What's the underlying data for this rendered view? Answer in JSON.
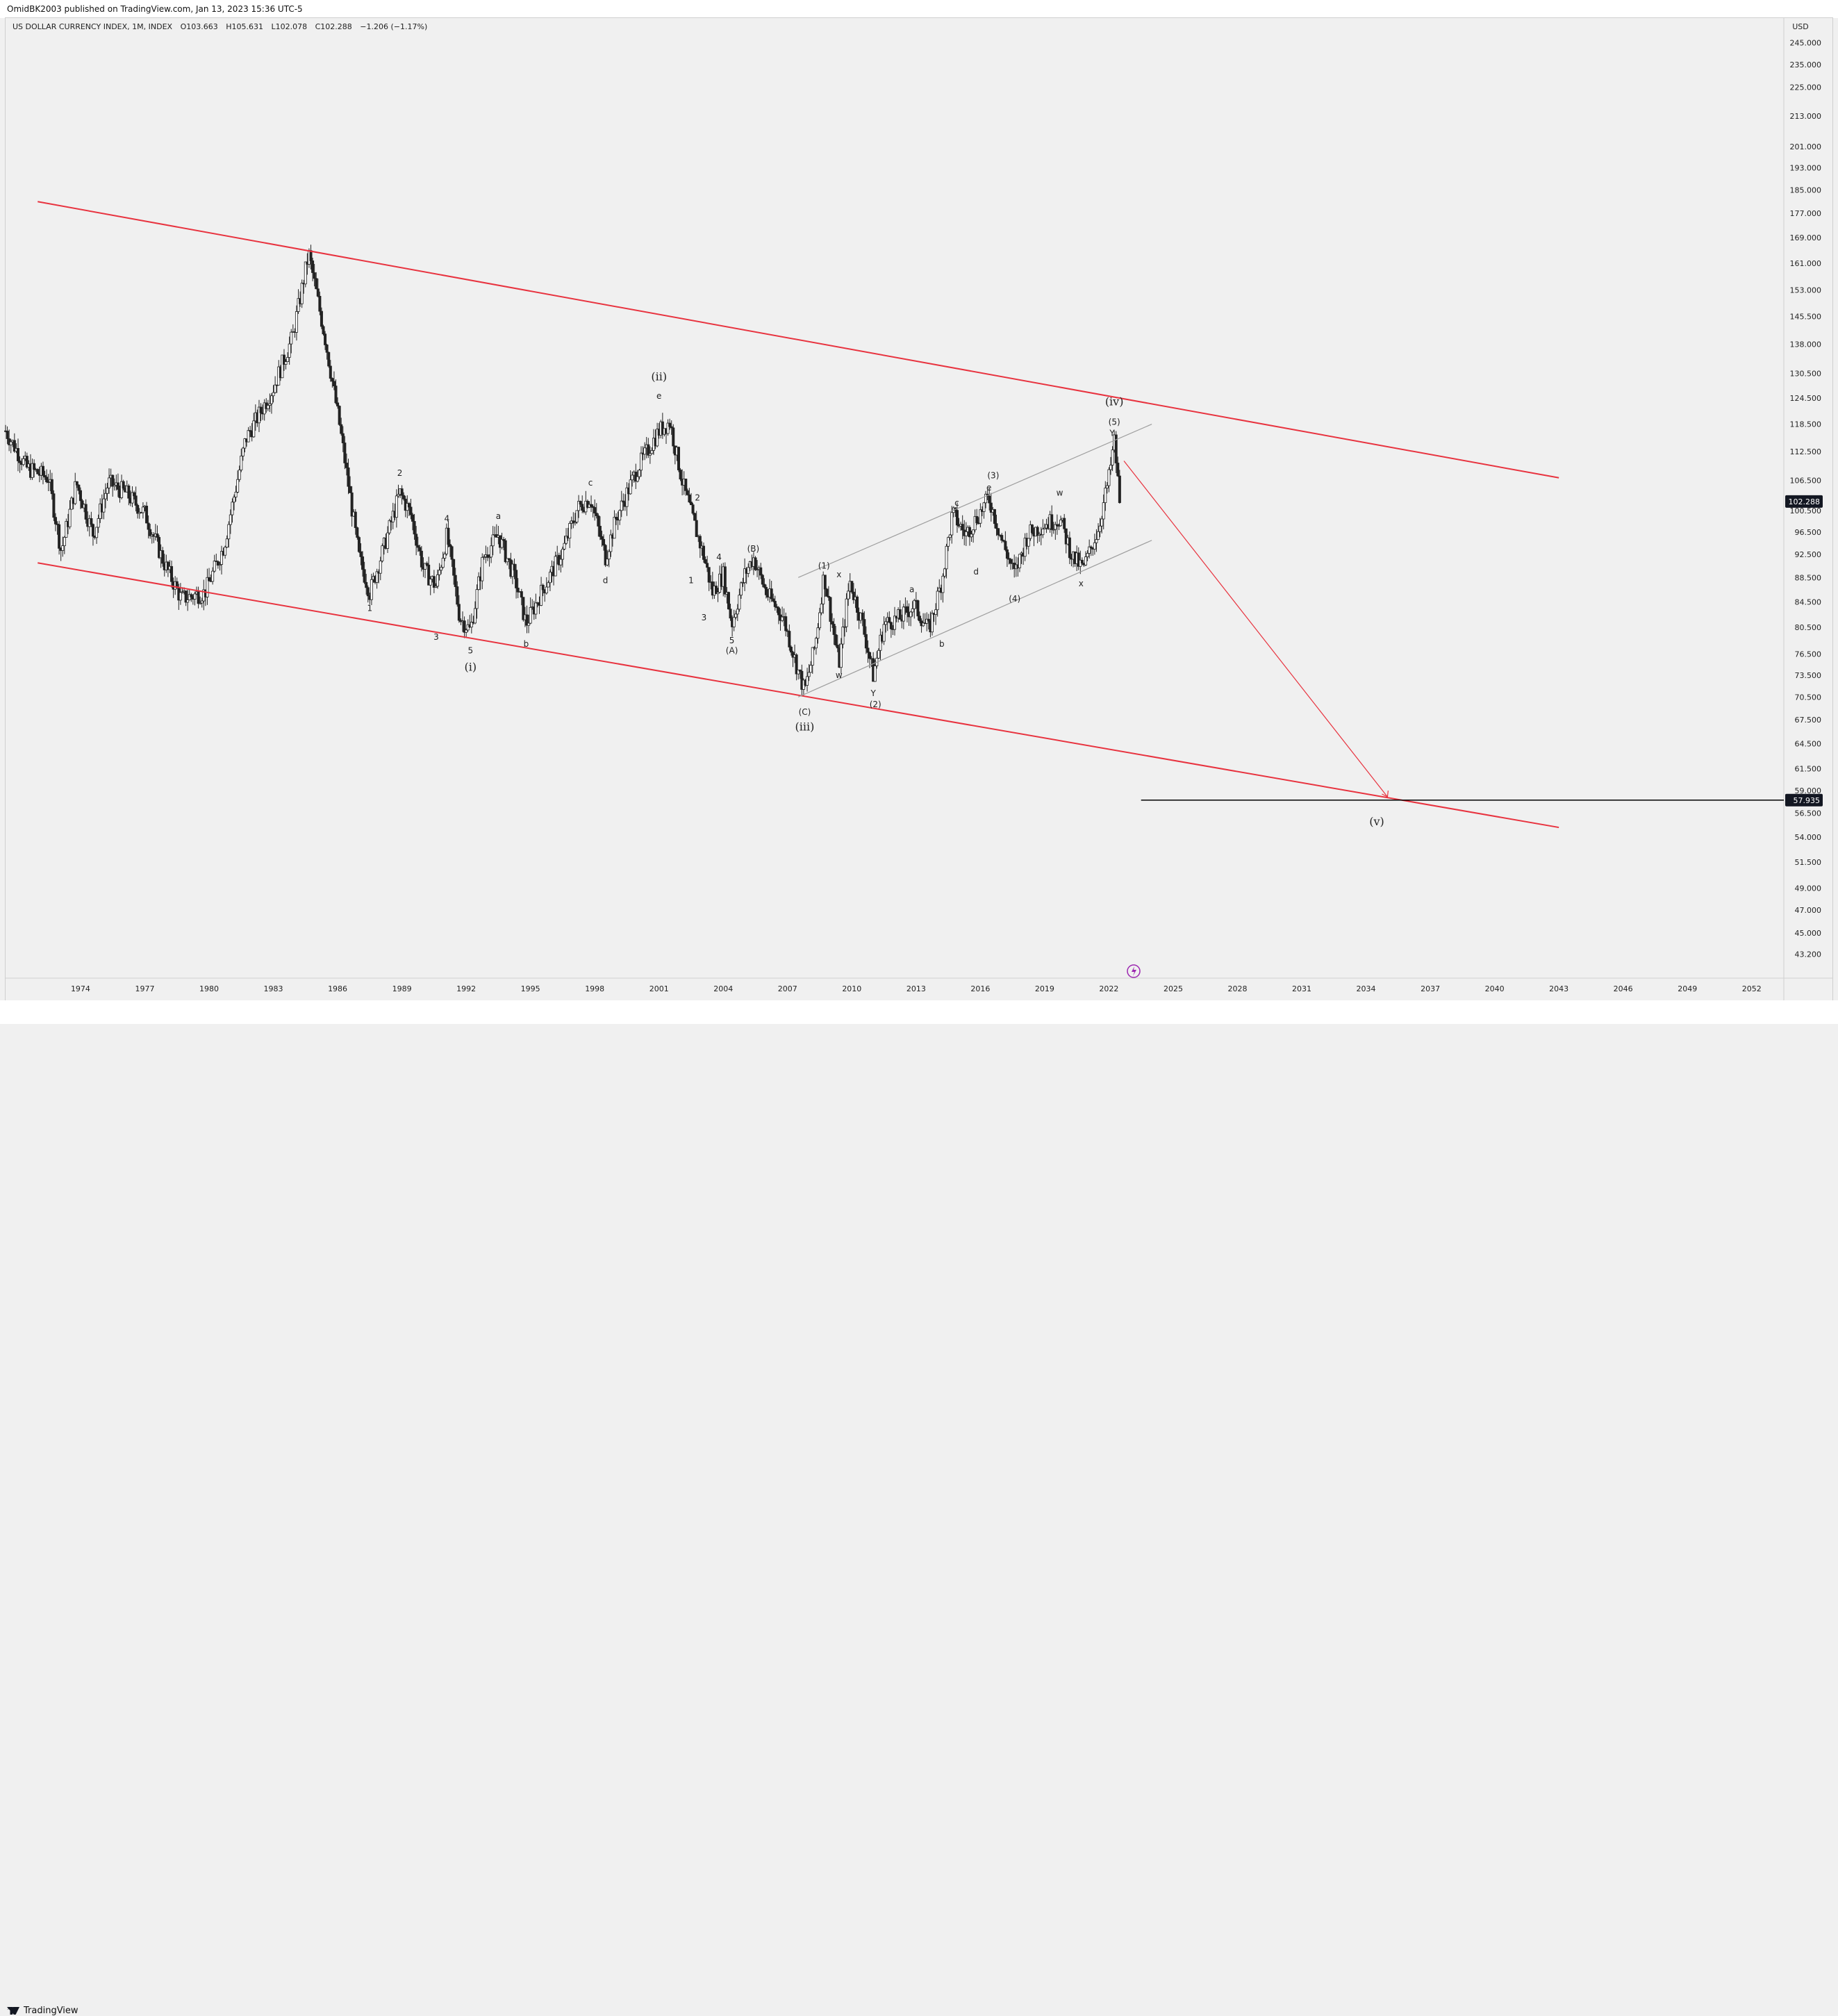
{
  "header": {
    "published_by": "OmidBK2003 published on TradingView.com, Jan 13, 2023 15:36 UTC-5",
    "symbol": "US DOLLAR CURRENCY INDEX, 1M, INDEX",
    "open": "O103.663",
    "high": "H105.631",
    "low": "L102.078",
    "close": "C102.288",
    "change": "−1.206 (−1.17%)"
  },
  "footer": {
    "brand": "TradingView"
  },
  "colors": {
    "channel": "#e8333f",
    "arrow": "#e8333f",
    "wave_channel": "#9e9e9e",
    "candle": "#222222",
    "target": "#000000",
    "price_badge": "#131722",
    "idea_icon": "#9c27b0"
  },
  "chart_data": {
    "type": "candlestick",
    "title": "US DOLLAR CURRENCY INDEX, 1M, INDEX",
    "currency": "USD",
    "y_scale": "log",
    "ylim": [
      42.0,
      252.0
    ],
    "xlim": [
      1971.0,
      2054.0
    ],
    "y_ticks": [
      "245.000",
      "235.000",
      "225.000",
      "213.000",
      "201.000",
      "193.000",
      "185.000",
      "177.000",
      "169.000",
      "161.000",
      "153.000",
      "145.500",
      "138.000",
      "130.500",
      "124.500",
      "118.500",
      "112.500",
      "106.500",
      "100.500",
      "96.500",
      "92.500",
      "88.500",
      "84.500",
      "80.500",
      "76.500",
      "73.500",
      "70.500",
      "67.500",
      "64.500",
      "61.500",
      "59.000",
      "56.500",
      "54.000",
      "51.500",
      "49.000",
      "47.000",
      "45.000",
      "43.200"
    ],
    "x_ticks": [
      "1974",
      "1977",
      "1980",
      "1983",
      "1986",
      "1989",
      "1992",
      "1995",
      "1998",
      "2001",
      "2004",
      "2007",
      "2010",
      "2013",
      "2016",
      "2019",
      "2022",
      "2025",
      "2028",
      "2031",
      "2034",
      "2037",
      "2040",
      "2043",
      "2046",
      "2049",
      "2052"
    ],
    "last_price": "102.288",
    "target_price": "57.935",
    "price_path": [
      [
        1971.0,
        117
      ],
      [
        1972.0,
        109
      ],
      [
        1973.0,
        107
      ],
      [
        1973.6,
        93
      ],
      [
        1974.3,
        106
      ],
      [
        1975.1,
        96
      ],
      [
        1975.8,
        106
      ],
      [
        1976.6,
        104
      ],
      [
        1977.5,
        100
      ],
      [
        1978.4,
        91
      ],
      [
        1979.2,
        85
      ],
      [
        1980.3,
        86
      ],
      [
        1981.2,
        94
      ],
      [
        1982.2,
        115
      ],
      [
        1983.5,
        127
      ],
      [
        1984.4,
        140
      ],
      [
        1985.15,
        164
      ],
      [
        1985.9,
        140
      ],
      [
        1986.6,
        118
      ],
      [
        1987.5,
        92
      ],
      [
        1988.0,
        86
      ],
      [
        1988.6,
        93
      ],
      [
        1989.4,
        104
      ],
      [
        1989.9,
        100
      ],
      [
        1990.5,
        90
      ],
      [
        1991.1,
        87
      ],
      [
        1991.6,
        96
      ],
      [
        1992.2,
        82
      ],
      [
        1992.7,
        80
      ],
      [
        1993.3,
        92
      ],
      [
        1994.0,
        96
      ],
      [
        1994.8,
        88
      ],
      [
        1995.3,
        81
      ],
      [
        1996.0,
        86
      ],
      [
        1997.0,
        93
      ],
      [
        1997.7,
        101
      ],
      [
        1998.3,
        103
      ],
      [
        1999.0,
        92
      ],
      [
        1999.5,
        99
      ],
      [
        2000.5,
        109
      ],
      [
        2001.5,
        117
      ],
      [
        2002.0,
        119
      ],
      [
        2002.6,
        106
      ],
      [
        2003.0,
        100
      ],
      [
        2003.6,
        92
      ],
      [
        2004.0,
        86
      ],
      [
        2004.5,
        89
      ],
      [
        2004.9,
        81
      ],
      [
        2005.5,
        89
      ],
      [
        2005.9,
        92
      ],
      [
        2006.5,
        86
      ],
      [
        2007.3,
        82
      ],
      [
        2008.0,
        74
      ],
      [
        2008.3,
        71.3
      ],
      [
        2008.8,
        78
      ],
      [
        2009.2,
        89
      ],
      [
        2009.9,
        75
      ],
      [
        2010.4,
        88
      ],
      [
        2011.0,
        81
      ],
      [
        2011.5,
        73.5
      ],
      [
        2012.0,
        81
      ],
      [
        2012.8,
        82
      ],
      [
        2013.4,
        84
      ],
      [
        2014.1,
        80
      ],
      [
        2014.7,
        88
      ],
      [
        2015.2,
        100
      ],
      [
        2015.8,
        96
      ],
      [
        2016.3,
        99
      ],
      [
        2016.9,
        103
      ],
      [
        2017.5,
        95
      ],
      [
        2018.1,
        89
      ],
      [
        2018.7,
        96
      ],
      [
        2019.5,
        98
      ],
      [
        2020.2,
        99
      ],
      [
        2020.8,
        92
      ],
      [
        2021.3,
        90
      ],
      [
        2022.0,
        97
      ],
      [
        2022.5,
        107
      ],
      [
        2022.75,
        114.8
      ],
      [
        2023.0,
        102.288
      ]
    ],
    "series": [
      {
        "name": "Upper channel",
        "x": [
          1972.5,
          2043.5
        ],
        "y": [
          181,
          107
        ]
      },
      {
        "name": "Lower channel",
        "x": [
          1972.5,
          2043.5
        ],
        "y": [
          91,
          55
        ]
      },
      {
        "name": "Wave channel top",
        "x": [
          2008.0,
          2024.5
        ],
        "y": [
          88.5,
          118.5
        ]
      },
      {
        "name": "Wave channel bottom",
        "x": [
          2008.0,
          2024.5
        ],
        "y": [
          70.5,
          95
        ]
      },
      {
        "name": "Projection",
        "x": [
          2023.2,
          2035.5
        ],
        "y": [
          110.5,
          58.3
        ]
      },
      {
        "name": "Target",
        "x": [
          2024.0,
          2054.0
        ],
        "y": [
          57.935,
          57.935
        ]
      }
    ],
    "annotations": [
      {
        "text": "1",
        "x": 1988.0,
        "y": 83.5
      },
      {
        "text": "2",
        "x": 1989.4,
        "y": 108
      },
      {
        "text": "3",
        "x": 1991.1,
        "y": 79
      },
      {
        "text": "4",
        "x": 1991.6,
        "y": 99
      },
      {
        "text": "5",
        "x": 1992.7,
        "y": 77
      },
      {
        "text": "a",
        "x": 1994.0,
        "y": 99.5
      },
      {
        "text": "b",
        "x": 1995.3,
        "y": 78
      },
      {
        "text": "c",
        "x": 1998.3,
        "y": 106
      },
      {
        "text": "d",
        "x": 1999.0,
        "y": 88
      },
      {
        "text": "e",
        "x": 2001.5,
        "y": 125
      },
      {
        "text": "1",
        "x": 2003.0,
        "y": 88
      },
      {
        "text": "2",
        "x": 2003.3,
        "y": 103
      },
      {
        "text": "3",
        "x": 2003.6,
        "y": 82
      },
      {
        "text": "4",
        "x": 2004.3,
        "y": 92
      },
      {
        "text": "5",
        "x": 2004.9,
        "y": 78.5
      },
      {
        "text": "(A)",
        "x": 2004.9,
        "y": 77
      },
      {
        "text": "(B)",
        "x": 2005.9,
        "y": 93.5
      },
      {
        "text": "(C)",
        "x": 2008.3,
        "y": 68.5
      },
      {
        "text": "(1)",
        "x": 2009.2,
        "y": 90.5
      },
      {
        "text": "x",
        "x": 2009.9,
        "y": 89
      },
      {
        "text": "w",
        "x": 2009.9,
        "y": 73.5
      },
      {
        "text": "Y",
        "x": 2011.5,
        "y": 71
      },
      {
        "text": "(2)",
        "x": 2011.6,
        "y": 69.5
      },
      {
        "text": "a",
        "x": 2013.3,
        "y": 86.5
      },
      {
        "text": "b",
        "x": 2014.7,
        "y": 78
      },
      {
        "text": "c",
        "x": 2015.4,
        "y": 102
      },
      {
        "text": "d",
        "x": 2016.3,
        "y": 89.5
      },
      {
        "text": "e",
        "x": 2016.9,
        "y": 105
      },
      {
        "text": "(3)",
        "x": 2017.1,
        "y": 107.5
      },
      {
        "text": "(4)",
        "x": 2018.1,
        "y": 85
      },
      {
        "text": "w",
        "x": 2020.2,
        "y": 104
      },
      {
        "text": "x",
        "x": 2021.2,
        "y": 87.5
      },
      {
        "text": "(5)",
        "x": 2022.75,
        "y": 119
      },
      {
        "text": "Y",
        "x": 2022.65,
        "y": 116.5
      },
      {
        "text": "(i)",
        "x": 1992.7,
        "y": 74.5
      },
      {
        "text": "(ii)",
        "x": 2001.5,
        "y": 129.5
      },
      {
        "text": "(iii)",
        "x": 2008.3,
        "y": 66.5
      },
      {
        "text": "(iv)",
        "x": 2022.75,
        "y": 123.5
      },
      {
        "text": "(v)",
        "x": 2035.0,
        "y": 55.5
      }
    ]
  }
}
